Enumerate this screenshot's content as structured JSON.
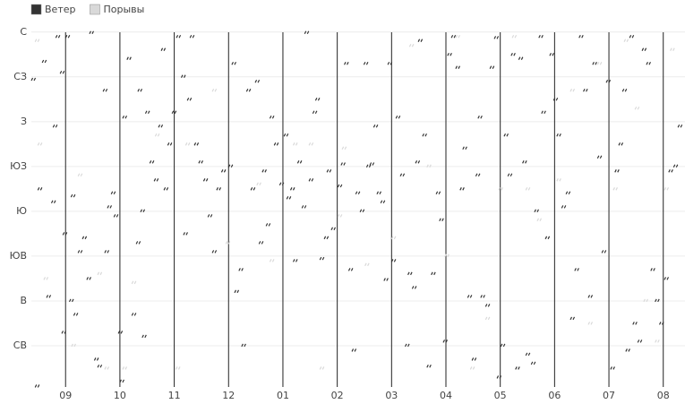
{
  "chart_data": {
    "type": "scatter",
    "xlim": [
      -0.63,
      11.4
    ],
    "ylim": [
      0,
      367
    ],
    "xticks": [
      {
        "value": 0,
        "label": "09"
      },
      {
        "value": 1,
        "label": "10"
      },
      {
        "value": 2,
        "label": "11"
      },
      {
        "value": 3,
        "label": "12"
      },
      {
        "value": 4,
        "label": "01"
      },
      {
        "value": 5,
        "label": "02"
      },
      {
        "value": 6,
        "label": "03"
      },
      {
        "value": 7,
        "label": "04"
      },
      {
        "value": 8,
        "label": "05"
      },
      {
        "value": 9,
        "label": "06"
      },
      {
        "value": 10,
        "label": "07"
      },
      {
        "value": 11,
        "label": "08"
      }
    ],
    "yticks": [
      {
        "value": 360,
        "label": "С"
      },
      {
        "value": 315,
        "label": "СЗ"
      },
      {
        "value": 270,
        "label": "З"
      },
      {
        "value": 225,
        "label": "ЮЗ"
      },
      {
        "value": 180,
        "label": "Ю"
      },
      {
        "value": 135,
        "label": "ЮВ"
      },
      {
        "value": 90,
        "label": "В"
      },
      {
        "value": 45,
        "label": "СВ"
      }
    ],
    "grid": true,
    "legend": "top-left",
    "series": [
      {
        "name": "Ветер",
        "color": "#333333",
        "x": [
          -0.51,
          -0.58,
          -0.38,
          -0.46,
          -0.3,
          -0.18,
          -0.21,
          -0.13,
          -0.05,
          0,
          -0.02,
          0.05,
          0.12,
          0.15,
          0.2,
          0.28,
          0.36,
          0.44,
          0.49,
          0.58,
          0.64,
          0.74,
          0.77,
          0.82,
          0.89,
          0.94,
          1.02,
          1.05,
          1.1,
          1.18,
          1.27,
          1.35,
          1.38,
          1.43,
          1.46,
          1.52,
          1.6,
          1.68,
          1.76,
          1.81,
          1.86,
          1.93,
          2.01,
          2.09,
          2.18,
          2.22,
          2.29,
          2.34,
          2.42,
          2.5,
          2.59,
          2.67,
          2.75,
          2.83,
          2.92,
          3.05,
          3.11,
          3.16,
          3.24,
          3.29,
          3.38,
          3.46,
          3.54,
          3.61,
          3.67,
          3.74,
          3.81,
          3.89,
          3.99,
          4.07,
          4.12,
          4.19,
          4.24,
          4.32,
          4.4,
          4.45,
          4.53,
          4.6,
          4.65,
          4.73,
          4.81,
          4.86,
          4.94,
          5.06,
          5.12,
          5.18,
          5.26,
          5.32,
          5.39,
          5.47,
          5.54,
          5.59,
          5.65,
          5.72,
          5.78,
          5.85,
          5.91,
          5.98,
          6.05,
          6.13,
          6.21,
          6.3,
          6.35,
          6.43,
          6.49,
          6.54,
          6.62,
          6.7,
          6.78,
          6.87,
          6.93,
          7,
          7.08,
          7.15,
          7.23,
          7.31,
          7.36,
          7.45,
          7.53,
          7.6,
          7.64,
          7.69,
          7.78,
          7.86,
          7.94,
          7.99,
          8.06,
          8.12,
          8.19,
          8.25,
          8.33,
          8.39,
          8.46,
          8.52,
          8.62,
          8.68,
          8.76,
          8.81,
          8.88,
          8.96,
          9.03,
          9.09,
          9.18,
          9.26,
          9.34,
          9.42,
          9.5,
          9.58,
          9.67,
          9.75,
          9.84,
          9.92,
          10,
          10.08,
          10.16,
          10.23,
          10.3,
          10.36,
          10.43,
          10.49,
          10.58,
          10.66,
          10.74,
          10.82,
          10.9,
          10.98,
          11.07,
          11.15,
          11.24,
          11.32
        ],
        "values": [
          5,
          313,
          331,
          203,
          95,
          266,
          190,
          356,
          320,
          158,
          59,
          356,
          91,
          196,
          77,
          140,
          154,
          113,
          360,
          32,
          25,
          302,
          140,
          185,
          199,
          176,
          59,
          10,
          275,
          334,
          77,
          149,
          302,
          181,
          55,
          280,
          230,
          212,
          266,
          343,
          203,
          248,
          280,
          356,
          316,
          158,
          293,
          356,
          248,
          230,
          212,
          176,
          140,
          203,
          221,
          226,
          329,
          100,
          122,
          46,
          302,
          203,
          311,
          149,
          221,
          167,
          275,
          248,
          208,
          257,
          194,
          203,
          131,
          230,
          185,
          360,
          212,
          280,
          293,
          133,
          154,
          221,
          163,
          206,
          228,
          329,
          122,
          41,
          199,
          181,
          329,
          226,
          228,
          266,
          199,
          190,
          112,
          329,
          131,
          275,
          217,
          46,
          118,
          104,
          230,
          352,
          257,
          25,
          118,
          199,
          172,
          50,
          338,
          356,
          325,
          203,
          244,
          95,
          32,
          217,
          275,
          95,
          86,
          325,
          355,
          14,
          46,
          257,
          217,
          338,
          23,
          334,
          230,
          37,
          28,
          181,
          356,
          280,
          154,
          338,
          293,
          257,
          185,
          199,
          73,
          122,
          356,
          302,
          95,
          329,
          235,
          140,
          311,
          23,
          221,
          248,
          302,
          41,
          356,
          68,
          50,
          343,
          329,
          122,
          91,
          68,
          113,
          221,
          226,
          266
        ]
      },
      {
        "name": "Порывы",
        "color": "#d9d9d9",
        "x": [
          -0.51,
          -0.46,
          -0.35,
          0.16,
          0.28,
          0.64,
          0.77,
          1.1,
          1.27,
          1.7,
          2.08,
          2.26,
          2.75,
          3,
          3.57,
          3.81,
          4.24,
          4.53,
          4.73,
          5.06,
          5.14,
          5.56,
          6.05,
          6.38,
          6.7,
          7.03,
          7.23,
          7.5,
          7.78,
          8.02,
          8.27,
          8.52,
          8.73,
          9.09,
          9.34,
          9.67,
          9.84,
          10.13,
          10.33,
          10.53,
          10.69,
          10.9,
          11.07,
          11.18
        ],
        "values": [
          352,
          248,
          113,
          46,
          217,
          118,
          23,
          23,
          109,
          257,
          23,
          248,
          302,
          149,
          208,
          131,
          248,
          248,
          23,
          176,
          244,
          127,
          154,
          347,
          226,
          136,
          356,
          23,
          73,
          203,
          356,
          203,
          172,
          212,
          302,
          68,
          329,
          203,
          352,
          284,
          91,
          50,
          203,
          343
        ]
      }
    ]
  }
}
